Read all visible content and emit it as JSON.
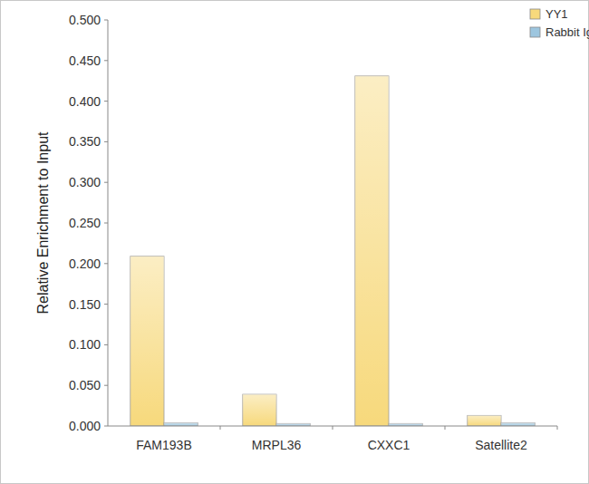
{
  "chart_data": {
    "type": "bar",
    "categories": [
      "FAM193B",
      "MRPL36",
      "CXXC1",
      "Satellite2"
    ],
    "series": [
      {
        "name": "YY1",
        "color": "#f7d97c",
        "values": [
          0.209,
          0.039,
          0.431,
          0.013
        ]
      },
      {
        "name": "Rabbit IgG",
        "color": "#9dc6df",
        "values": [
          0.004,
          0.003,
          0.003,
          0.004
        ]
      }
    ],
    "y_label": "Relative Enrichment to Input",
    "ylim": [
      0,
      0.5
    ],
    "yticks": [
      {
        "value": 0,
        "label": "0.000"
      },
      {
        "value": 0.05,
        "label": "0.050"
      },
      {
        "value": 0.1,
        "label": "0.100"
      },
      {
        "value": 0.15,
        "label": "0.150"
      },
      {
        "value": 0.2,
        "label": "0.200"
      },
      {
        "value": 0.25,
        "label": "0.250"
      },
      {
        "value": 0.3,
        "label": "0.300"
      },
      {
        "value": 0.35,
        "label": "0.350"
      },
      {
        "value": 0.4,
        "label": "0.400"
      },
      {
        "value": 0.45,
        "label": "0.450"
      },
      {
        "value": 0.5,
        "label": "0.500"
      }
    ],
    "grid": false,
    "legend": "top-right"
  }
}
